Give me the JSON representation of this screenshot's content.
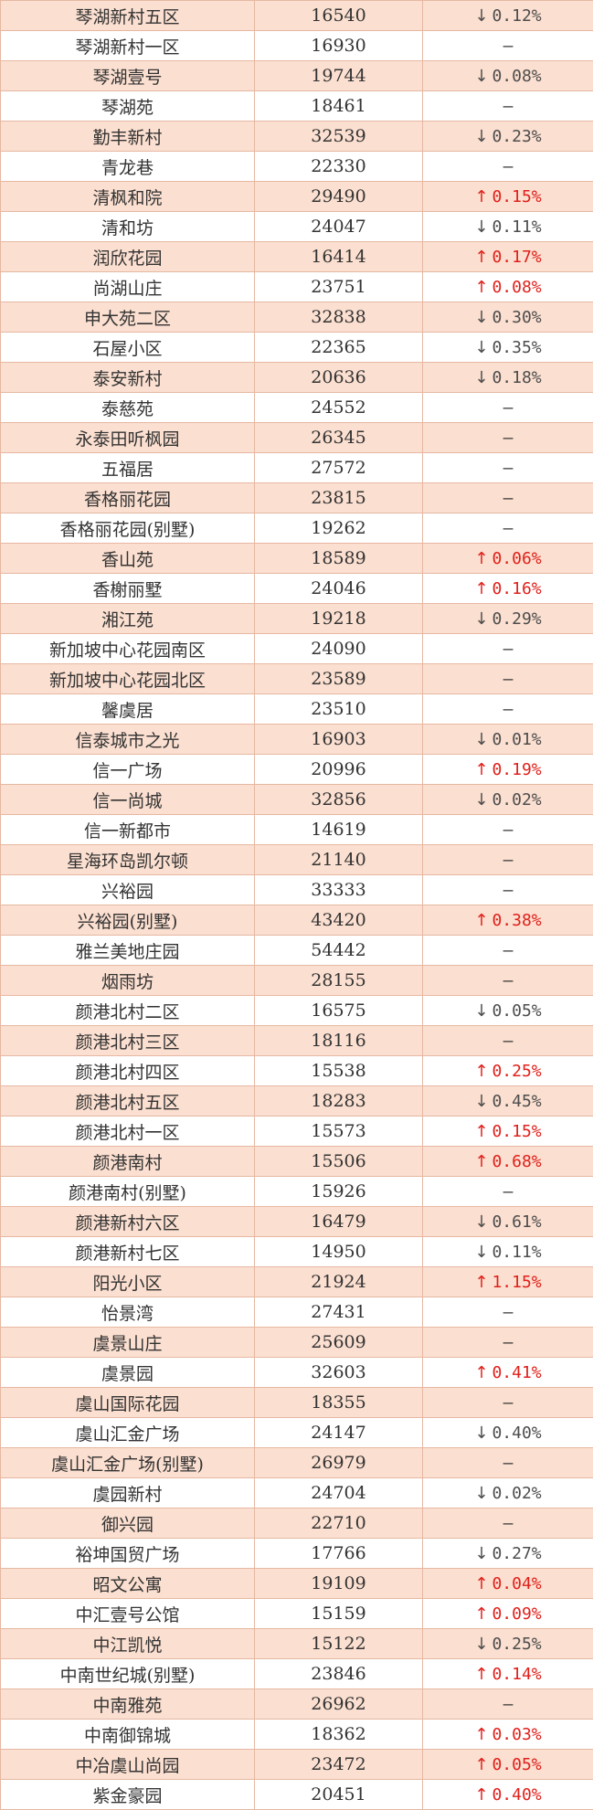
{
  "rows": [
    {
      "name": "琴湖新村五区",
      "price": "16540",
      "dir": "down",
      "change": "0.12%"
    },
    {
      "name": "琴湖新村一区",
      "price": "16930",
      "dir": "flat",
      "change": "–"
    },
    {
      "name": "琴湖壹号",
      "price": "19744",
      "dir": "down",
      "change": "0.08%"
    },
    {
      "name": "琴湖苑",
      "price": "18461",
      "dir": "flat",
      "change": "–"
    },
    {
      "name": "勤丰新村",
      "price": "32539",
      "dir": "down",
      "change": "0.23%"
    },
    {
      "name": "青龙巷",
      "price": "22330",
      "dir": "flat",
      "change": "–"
    },
    {
      "name": "清枫和院",
      "price": "29490",
      "dir": "up",
      "change": "0.15%"
    },
    {
      "name": "清和坊",
      "price": "24047",
      "dir": "down",
      "change": "0.11%"
    },
    {
      "name": "润欣花园",
      "price": "16414",
      "dir": "up",
      "change": "0.17%"
    },
    {
      "name": "尚湖山庄",
      "price": "23751",
      "dir": "up",
      "change": "0.08%"
    },
    {
      "name": "申大苑二区",
      "price": "32838",
      "dir": "down",
      "change": "0.30%"
    },
    {
      "name": "石屋小区",
      "price": "22365",
      "dir": "down",
      "change": "0.35%"
    },
    {
      "name": "泰安新村",
      "price": "20636",
      "dir": "down",
      "change": "0.18%"
    },
    {
      "name": "泰慈苑",
      "price": "24552",
      "dir": "flat",
      "change": "–"
    },
    {
      "name": "永泰田听枫园",
      "price": "26345",
      "dir": "flat",
      "change": "–"
    },
    {
      "name": "五福居",
      "price": "27572",
      "dir": "flat",
      "change": "–"
    },
    {
      "name": "香格丽花园",
      "price": "23815",
      "dir": "flat",
      "change": "–"
    },
    {
      "name": "香格丽花园(别墅)",
      "price": "19262",
      "dir": "flat",
      "change": "–"
    },
    {
      "name": "香山苑",
      "price": "18589",
      "dir": "up",
      "change": "0.06%"
    },
    {
      "name": "香榭丽墅",
      "price": "24046",
      "dir": "up",
      "change": "0.16%"
    },
    {
      "name": "湘江苑",
      "price": "19218",
      "dir": "down",
      "change": "0.29%"
    },
    {
      "name": "新加坡中心花园南区",
      "price": "24090",
      "dir": "flat",
      "change": "–"
    },
    {
      "name": "新加坡中心花园北区",
      "price": "23589",
      "dir": "flat",
      "change": "–"
    },
    {
      "name": "馨虞居",
      "price": "23510",
      "dir": "flat",
      "change": "–"
    },
    {
      "name": "信泰城市之光",
      "price": "16903",
      "dir": "down",
      "change": "0.01%"
    },
    {
      "name": "信一广场",
      "price": "20996",
      "dir": "up",
      "change": "0.19%"
    },
    {
      "name": "信一尚城",
      "price": "32856",
      "dir": "down",
      "change": "0.02%"
    },
    {
      "name": "信一新都市",
      "price": "14619",
      "dir": "flat",
      "change": "–"
    },
    {
      "name": "星海环岛凯尔顿",
      "price": "21140",
      "dir": "flat",
      "change": "–"
    },
    {
      "name": "兴裕园",
      "price": "33333",
      "dir": "flat",
      "change": "–"
    },
    {
      "name": "兴裕园(别墅)",
      "price": "43420",
      "dir": "up",
      "change": "0.38%"
    },
    {
      "name": "雅兰美地庄园",
      "price": "54442",
      "dir": "flat",
      "change": "–"
    },
    {
      "name": "烟雨坊",
      "price": "28155",
      "dir": "flat",
      "change": "–"
    },
    {
      "name": "颜港北村二区",
      "price": "16575",
      "dir": "down",
      "change": "0.05%"
    },
    {
      "name": "颜港北村三区",
      "price": "18116",
      "dir": "flat",
      "change": "–"
    },
    {
      "name": "颜港北村四区",
      "price": "15538",
      "dir": "up",
      "change": "0.25%"
    },
    {
      "name": "颜港北村五区",
      "price": "18283",
      "dir": "down",
      "change": "0.45%"
    },
    {
      "name": "颜港北村一区",
      "price": "15573",
      "dir": "up",
      "change": "0.15%"
    },
    {
      "name": "颜港南村",
      "price": "15506",
      "dir": "up",
      "change": "0.68%"
    },
    {
      "name": "颜港南村(别墅)",
      "price": "15926",
      "dir": "flat",
      "change": "–"
    },
    {
      "name": "颜港新村六区",
      "price": "16479",
      "dir": "down",
      "change": "0.61%"
    },
    {
      "name": "颜港新村七区",
      "price": "14950",
      "dir": "down",
      "change": "0.11%"
    },
    {
      "name": "阳光小区",
      "price": "21924",
      "dir": "up",
      "change": "1.15%"
    },
    {
      "name": "怡景湾",
      "price": "27431",
      "dir": "flat",
      "change": "–"
    },
    {
      "name": "虞景山庄",
      "price": "25609",
      "dir": "flat",
      "change": "–"
    },
    {
      "name": "虞景园",
      "price": "32603",
      "dir": "up",
      "change": "0.41%"
    },
    {
      "name": "虞山国际花园",
      "price": "18355",
      "dir": "flat",
      "change": "–"
    },
    {
      "name": "虞山汇金广场",
      "price": "24147",
      "dir": "down",
      "change": "0.40%"
    },
    {
      "name": "虞山汇金广场(别墅)",
      "price": "26979",
      "dir": "flat",
      "change": "–"
    },
    {
      "name": "虞园新村",
      "price": "24704",
      "dir": "down",
      "change": "0.02%"
    },
    {
      "name": "御兴园",
      "price": "22710",
      "dir": "flat",
      "change": "–"
    },
    {
      "name": "裕坤国贸广场",
      "price": "17766",
      "dir": "down",
      "change": "0.27%"
    },
    {
      "name": "昭文公寓",
      "price": "19109",
      "dir": "up",
      "change": "0.04%"
    },
    {
      "name": "中汇壹号公馆",
      "price": "15159",
      "dir": "up",
      "change": "0.09%"
    },
    {
      "name": "中江凯悦",
      "price": "15122",
      "dir": "down",
      "change": "0.25%"
    },
    {
      "name": "中南世纪城(别墅)",
      "price": "23846",
      "dir": "up",
      "change": "0.14%"
    },
    {
      "name": "中南雅苑",
      "price": "26962",
      "dir": "flat",
      "change": "–"
    },
    {
      "name": "中南御锦城",
      "price": "18362",
      "dir": "up",
      "change": "0.03%"
    },
    {
      "name": "中冶虞山尚园",
      "price": "23472",
      "dir": "up",
      "change": "0.05%"
    },
    {
      "name": "紫金豪园",
      "price": "20451",
      "dir": "up",
      "change": "0.40%"
    }
  ],
  "arrow_glyphs": {
    "up": "↑",
    "down": "↓",
    "flat": ""
  },
  "colors": {
    "row_shade": "#fbdfd0",
    "row_plain": "#ffffff",
    "border": "#e6b8a2",
    "up": "#e0201b",
    "down": "#4d4d4d"
  }
}
